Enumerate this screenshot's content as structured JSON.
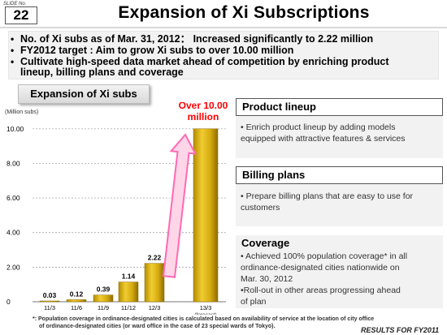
{
  "slide": {
    "no_label": "SLIDE No.",
    "number": "22"
  },
  "title": "Expansion of Xi Subscriptions",
  "bullets": [
    "No. of Xi subs as of Mar. 31, 2012： Increased significantly to 2.22 million",
    "FY2012 target : Aim to grow Xi subs to over 10.00 million",
    "Cultivate high-speed data market ahead of competition by enriching product",
    "lineup, billing plans and coverage"
  ],
  "chart_label": "Expansion of Xi subs",
  "chart_data": {
    "type": "bar",
    "title": "",
    "ylabel": "(Million subs)",
    "xlabel": "",
    "ylim": [
      0,
      10.6
    ],
    "yticks": [
      "0",
      "2.00",
      "4.00",
      "6.00",
      "8.00",
      "10.00"
    ],
    "categories": [
      "11/3",
      "11/6",
      "11/9",
      "11/12",
      "12/3",
      "13/3"
    ],
    "category_notes": [
      "",
      "",
      "",
      "",
      "",
      "(forecast)"
    ],
    "values": [
      0.03,
      0.12,
      0.39,
      1.14,
      2.22,
      10.0
    ],
    "value_labels": [
      "0.03",
      "0.12",
      "0.39",
      "1.14",
      "2.22",
      ""
    ],
    "annotation": [
      "Over 10.00",
      "million"
    ],
    "bar_color": "#d4aa10",
    "annotation_color": "#ff0000",
    "arrow_color": "#ff69b4",
    "grid": true
  },
  "panels": {
    "product": {
      "title": "Product lineup",
      "lines": [
        "• Enrich product lineup by adding models",
        "   equipped with attractive features & services"
      ]
    },
    "billing": {
      "title": "Billing plans",
      "lines": [
        "• Prepare billing plans that are easy to use for",
        "   customers"
      ]
    },
    "coverage": {
      "title": "Coverage",
      "lines": [
        "• Achieved 100% population coverage* in all",
        "   ordinance-designated cities nationwide on",
        "   Mar. 30, 2012",
        "•Roll-out in other areas progressing ahead",
        "   of plan"
      ]
    }
  },
  "footnote": [
    "*: Population coverage in ordinance-designated cities is calculated based on availability of service at the location of city office",
    "of ordinance-designated cities (or ward office in the case of 23 special wards of Tokyo)."
  ],
  "footer": "RESULTS FOR FY2011"
}
